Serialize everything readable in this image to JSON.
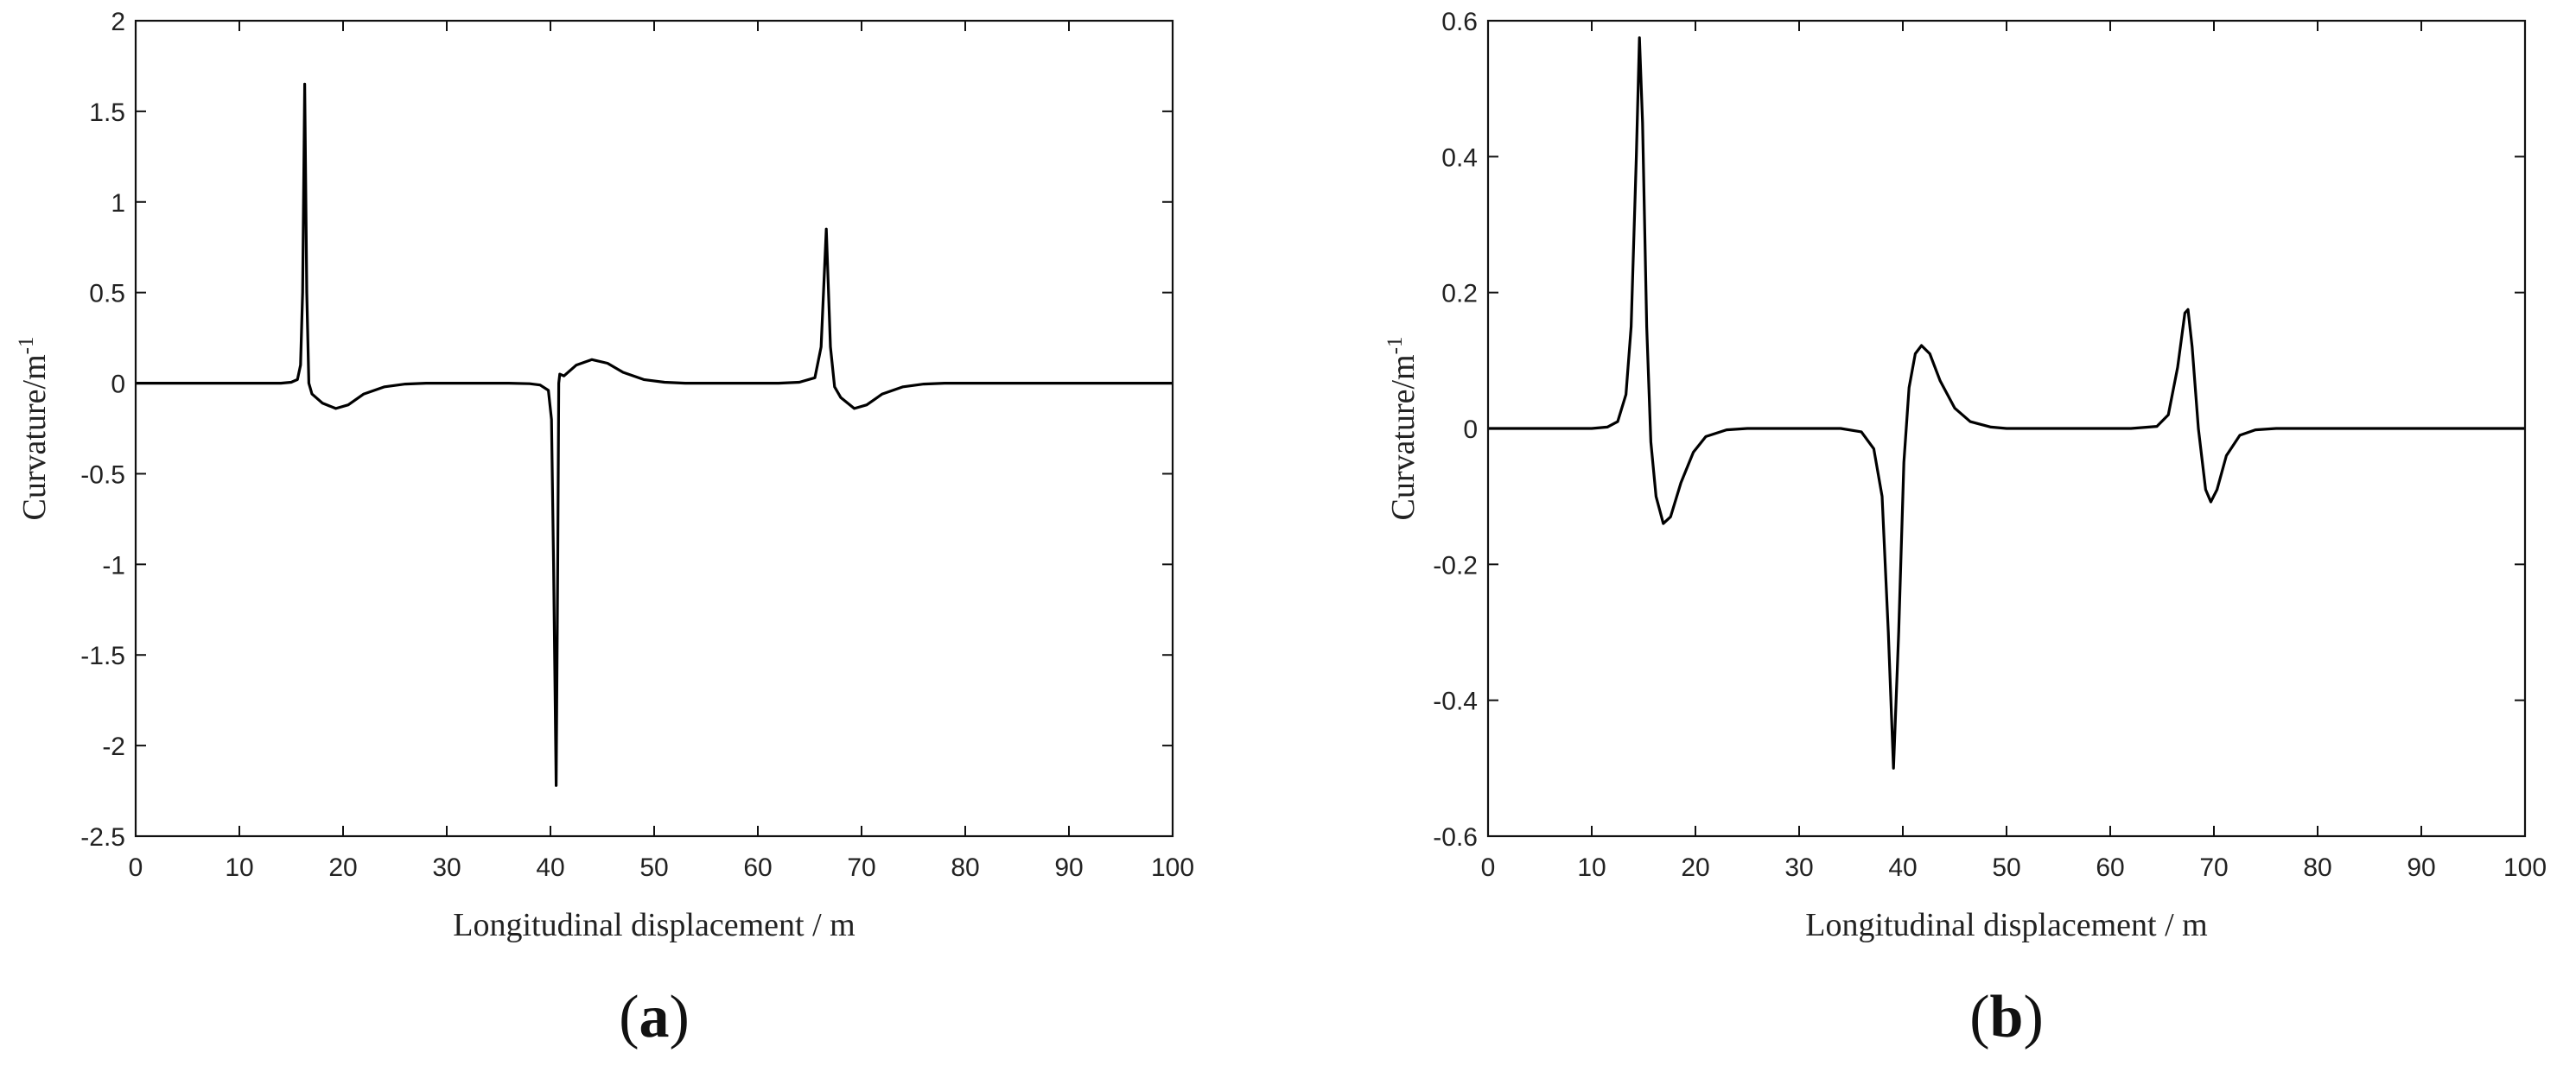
{
  "chart_data": [
    {
      "panel": "(a)",
      "panel_letter": "a",
      "type": "line",
      "xlabel": "Longitudinal displacement / m",
      "ylabel": "Curvature/m",
      "ylabel_sup": "-1",
      "xlim": [
        0,
        100
      ],
      "ylim": [
        -2.5,
        2
      ],
      "xticks": [
        0,
        10,
        20,
        30,
        40,
        50,
        60,
        70,
        80,
        90,
        100
      ],
      "xtick_labels": [
        "0",
        "10",
        "20",
        "30",
        "40",
        "50",
        "60",
        "70",
        "80",
        "90",
        "100"
      ],
      "yticks": [
        -2.5,
        -2,
        -1.5,
        -1,
        -0.5,
        0,
        0.5,
        1,
        1.5,
        2
      ],
      "ytick_labels": [
        "-2.5",
        "-2",
        "-1.5",
        "-1",
        "-0.5",
        "0",
        "0.5",
        "1",
        "1.5",
        "2"
      ],
      "grid": false,
      "series": [
        {
          "color": "#000000",
          "points": [
            [
              0,
              0
            ],
            [
              12,
              0
            ],
            [
              14,
              0.0
            ],
            [
              15,
              0.005
            ],
            [
              15.6,
              0.02
            ],
            [
              15.9,
              0.1
            ],
            [
              16.1,
              0.5
            ],
            [
              16.3,
              1.65
            ],
            [
              16.5,
              0.5
            ],
            [
              16.7,
              0.0
            ],
            [
              17,
              -0.06
            ],
            [
              18,
              -0.11
            ],
            [
              19.3,
              -0.14
            ],
            [
              20.5,
              -0.12
            ],
            [
              22,
              -0.06
            ],
            [
              24,
              -0.02
            ],
            [
              26,
              -0.005
            ],
            [
              28,
              0
            ],
            [
              36,
              0
            ],
            [
              38,
              -0.003
            ],
            [
              39,
              -0.01
            ],
            [
              39.8,
              -0.04
            ],
            [
              40.1,
              -0.2
            ],
            [
              40.3,
              -1.0
            ],
            [
              40.55,
              -2.22
            ],
            [
              40.7,
              -1.0
            ],
            [
              40.8,
              0.0
            ],
            [
              40.9,
              0.05
            ],
            [
              41.3,
              0.04
            ],
            [
              42.5,
              0.1
            ],
            [
              44,
              0.13
            ],
            [
              45.5,
              0.11
            ],
            [
              47,
              0.06
            ],
            [
              49,
              0.02
            ],
            [
              51,
              0.005
            ],
            [
              53,
              0
            ],
            [
              62,
              0
            ],
            [
              64,
              0.005
            ],
            [
              65.5,
              0.03
            ],
            [
              66.1,
              0.2
            ],
            [
              66.6,
              0.85
            ],
            [
              67.0,
              0.2
            ],
            [
              67.4,
              -0.02
            ],
            [
              68,
              -0.08
            ],
            [
              69.3,
              -0.14
            ],
            [
              70.5,
              -0.12
            ],
            [
              72,
              -0.06
            ],
            [
              74,
              -0.02
            ],
            [
              76,
              -0.005
            ],
            [
              78,
              0
            ],
            [
              100,
              0
            ]
          ]
        }
      ]
    },
    {
      "panel": "(b)",
      "panel_letter": "b",
      "type": "line",
      "xlabel": "Longitudinal displacement / m",
      "ylabel": "Curvature/m",
      "ylabel_sup": "-1",
      "xlim": [
        0,
        100
      ],
      "ylim": [
        -0.6,
        0.6
      ],
      "xticks": [
        0,
        10,
        20,
        30,
        40,
        50,
        60,
        70,
        80,
        90,
        100
      ],
      "xtick_labels": [
        "0",
        "10",
        "20",
        "30",
        "40",
        "50",
        "60",
        "70",
        "80",
        "90",
        "100"
      ],
      "yticks": [
        -0.6,
        -0.4,
        -0.2,
        0,
        0.2,
        0.4,
        0.6
      ],
      "ytick_labels": [
        "-0.6",
        "-0.4",
        "-0.2",
        "0",
        "0.2",
        "0.4",
        "0.6"
      ],
      "grid": false,
      "series": [
        {
          "color": "#000000",
          "points": [
            [
              0,
              0
            ],
            [
              10,
              0
            ],
            [
              11.5,
              0.002
            ],
            [
              12.5,
              0.01
            ],
            [
              13.3,
              0.05
            ],
            [
              13.8,
              0.15
            ],
            [
              14.3,
              0.4
            ],
            [
              14.6,
              0.575
            ],
            [
              14.9,
              0.45
            ],
            [
              15.3,
              0.15
            ],
            [
              15.7,
              -0.02
            ],
            [
              16.2,
              -0.1
            ],
            [
              16.9,
              -0.14
            ],
            [
              17.6,
              -0.13
            ],
            [
              18.6,
              -0.08
            ],
            [
              19.8,
              -0.035
            ],
            [
              21,
              -0.012
            ],
            [
              23,
              -0.002
            ],
            [
              25,
              0
            ],
            [
              34,
              0
            ],
            [
              36,
              -0.005
            ],
            [
              37.2,
              -0.03
            ],
            [
              38,
              -0.1
            ],
            [
              38.6,
              -0.3
            ],
            [
              39.1,
              -0.5
            ],
            [
              39.6,
              -0.3
            ],
            [
              40.1,
              -0.05
            ],
            [
              40.6,
              0.06
            ],
            [
              41.2,
              0.11
            ],
            [
              41.8,
              0.122
            ],
            [
              42.6,
              0.11
            ],
            [
              43.6,
              0.07
            ],
            [
              45,
              0.03
            ],
            [
              46.5,
              0.01
            ],
            [
              48.5,
              0.002
            ],
            [
              50,
              0
            ],
            [
              62,
              0
            ],
            [
              64.5,
              0.003
            ],
            [
              65.6,
              0.02
            ],
            [
              66.5,
              0.09
            ],
            [
              67.2,
              0.17
            ],
            [
              67.5,
              0.175
            ],
            [
              67.9,
              0.12
            ],
            [
              68.5,
              0.0
            ],
            [
              69.2,
              -0.09
            ],
            [
              69.7,
              -0.108
            ],
            [
              70.3,
              -0.09
            ],
            [
              71.2,
              -0.04
            ],
            [
              72.5,
              -0.01
            ],
            [
              74,
              -0.002
            ],
            [
              76,
              0
            ],
            [
              100,
              0
            ]
          ]
        }
      ]
    }
  ]
}
